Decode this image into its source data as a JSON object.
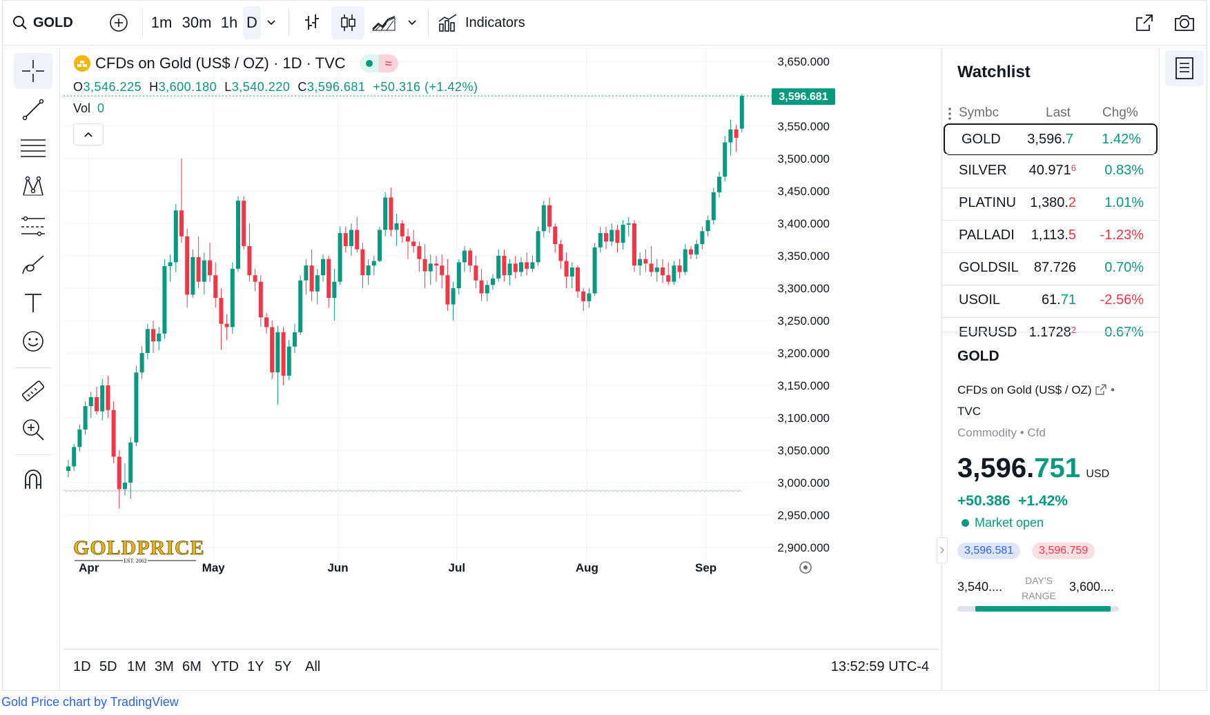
{
  "topbar": {
    "symbol": "GOLD",
    "intervals": [
      "1m",
      "30m",
      "1h",
      "D"
    ],
    "indicators_label": "Indicators"
  },
  "legend": {
    "title": "CFDs on Gold (US$ / OZ) · 1D · TVC",
    "open_k": "O",
    "open": "3,546.225",
    "high_k": "H",
    "high": "3,600.180",
    "low_k": "L",
    "low": "3,540.220",
    "close_k": "C",
    "close": "3,596.681",
    "change": "+50.316 (+1.42%)",
    "vol_label": "Vol",
    "vol_value": "0"
  },
  "price_scale": {
    "ticks": [
      "3,650.000",
      "3,600.000",
      "3,550.000",
      "3,500.000",
      "3,450.000",
      "3,400.000",
      "3,350.000",
      "3,300.000",
      "3,250.000",
      "3,200.000",
      "3,150.000",
      "3,100.000",
      "3,050.000",
      "3,000.000",
      "2,950.000",
      "2,900.000"
    ],
    "last_price": "3,596.681"
  },
  "time_scale": {
    "ticks": [
      "Apr",
      "May",
      "Jun",
      "Jul",
      "Aug",
      "Sep"
    ]
  },
  "watermark": {
    "logo": "GOLDPRICE",
    "est": "EST. 2002"
  },
  "range_buttons": [
    "1D",
    "5D",
    "1M",
    "3M",
    "6M",
    "YTD",
    "1Y",
    "5Y",
    "All"
  ],
  "clock": "13:52:59 UTC-4",
  "watchlist": {
    "title": "Watchlist",
    "col_symbol": "Symbc",
    "col_last": "Last",
    "col_chg": "Chg%",
    "rows": [
      {
        "symbol": "GOLD",
        "last": "3,596.",
        "last_tail": "7",
        "chg": "1.42%",
        "dir": "up"
      },
      {
        "symbol": "SILVER",
        "last": "40.971",
        "last_tail": "6",
        "chg": "0.83%",
        "dir": "down"
      },
      {
        "symbol": "PLATINU",
        "last": "1,380.",
        "last_tail": "2",
        "chg": "1.01%",
        "dir": "down"
      },
      {
        "symbol": "PALLADI",
        "last": "1,113.",
        "last_tail": "5",
        "chg": "-1.23%",
        "dir": "down"
      },
      {
        "symbol": "GOLDSIL",
        "last": "87.726",
        "last_tail": "",
        "chg": "0.70%",
        "dir": "up"
      },
      {
        "symbol": "USOIL",
        "last": "61.",
        "last_tail": "71",
        "chg": "-2.56%",
        "dir": "up"
      },
      {
        "symbol": "EURUSD",
        "last": "1.1728",
        "last_tail": "2",
        "chg": "0.67%",
        "dir": "down"
      }
    ]
  },
  "details": {
    "symbol": "GOLD",
    "name": "CFDs on Gold (US$ / OZ)",
    "exchange": "TVC",
    "category": "Commodity",
    "type": "Cfd",
    "price_main": "3,596.",
    "price_tail": "751",
    "currency": "USD",
    "change": "+50.386",
    "change_pct": "+1.42%",
    "market_status": "Market open",
    "bid": "3,596.581",
    "ask": "3,596.759",
    "range_low": "3,540....",
    "range_label_1": "DAY'S",
    "range_label_2": "RANGE",
    "range_high": "3,600....",
    "range_fill": 0.94
  },
  "footer": "Gold Price chart by TradingView",
  "colors": {
    "up": "#089981",
    "down": "#f23645",
    "accent": "#2962ff",
    "text": "#131722",
    "muted": "#6a6d78",
    "gold": "#f7b500"
  },
  "chart_data": {
    "type": "candlestick",
    "title": "CFDs on Gold (US$ / OZ) · 1D · TVC",
    "ylim": [
      2880,
      3660
    ],
    "y_ticks": [
      2900,
      2950,
      3000,
      3050,
      3100,
      3150,
      3200,
      3250,
      3300,
      3350,
      3400,
      3450,
      3500,
      3550,
      3600,
      3650
    ],
    "x_ticks": [
      {
        "label": "Apr",
        "index": 4
      },
      {
        "label": "May",
        "index": 26
      },
      {
        "label": "Jun",
        "index": 48
      },
      {
        "label": "Jul",
        "index": 69
      },
      {
        "label": "Aug",
        "index": 92
      },
      {
        "label": "Sep",
        "index": 113
      }
    ],
    "last_price": 3596.681,
    "candles": [
      {
        "o": 3018,
        "h": 3035,
        "l": 3008,
        "c": 3025
      },
      {
        "o": 3025,
        "h": 3060,
        "l": 3018,
        "c": 3055
      },
      {
        "o": 3055,
        "h": 3090,
        "l": 3048,
        "c": 3082
      },
      {
        "o": 3082,
        "h": 3125,
        "l": 3074,
        "c": 3118
      },
      {
        "o": 3118,
        "h": 3140,
        "l": 3100,
        "c": 3132
      },
      {
        "o": 3132,
        "h": 3148,
        "l": 3105,
        "c": 3110
      },
      {
        "o": 3110,
        "h": 3160,
        "l": 3096,
        "c": 3150
      },
      {
        "o": 3150,
        "h": 3165,
        "l": 3100,
        "c": 3112
      },
      {
        "o": 3112,
        "h": 3125,
        "l": 3030,
        "c": 3040
      },
      {
        "o": 3040,
        "h": 3050,
        "l": 2960,
        "c": 2990
      },
      {
        "o": 2990,
        "h": 3030,
        "l": 2980,
        "c": 3000
      },
      {
        "o": 3000,
        "h": 3070,
        "l": 2975,
        "c": 3062
      },
      {
        "o": 3062,
        "h": 3180,
        "l": 3056,
        "c": 3170
      },
      {
        "o": 3170,
        "h": 3210,
        "l": 3160,
        "c": 3200
      },
      {
        "o": 3200,
        "h": 3245,
        "l": 3190,
        "c": 3237
      },
      {
        "o": 3237,
        "h": 3250,
        "l": 3200,
        "c": 3218
      },
      {
        "o": 3218,
        "h": 3240,
        "l": 3204,
        "c": 3230
      },
      {
        "o": 3230,
        "h": 3345,
        "l": 3222,
        "c": 3334
      },
      {
        "o": 3334,
        "h": 3352,
        "l": 3310,
        "c": 3340
      },
      {
        "o": 3340,
        "h": 3430,
        "l": 3325,
        "c": 3420
      },
      {
        "o": 3420,
        "h": 3500,
        "l": 3370,
        "c": 3380
      },
      {
        "o": 3380,
        "h": 3392,
        "l": 3270,
        "c": 3290
      },
      {
        "o": 3290,
        "h": 3360,
        "l": 3285,
        "c": 3348
      },
      {
        "o": 3348,
        "h": 3380,
        "l": 3300,
        "c": 3310
      },
      {
        "o": 3310,
        "h": 3355,
        "l": 3290,
        "c": 3343
      },
      {
        "o": 3343,
        "h": 3370,
        "l": 3310,
        "c": 3320
      },
      {
        "o": 3320,
        "h": 3340,
        "l": 3270,
        "c": 3285
      },
      {
        "o": 3285,
        "h": 3300,
        "l": 3205,
        "c": 3245
      },
      {
        "o": 3245,
        "h": 3260,
        "l": 3220,
        "c": 3240
      },
      {
        "o": 3240,
        "h": 3340,
        "l": 3230,
        "c": 3330
      },
      {
        "o": 3330,
        "h": 3442,
        "l": 3325,
        "c": 3435
      },
      {
        "o": 3435,
        "h": 3442,
        "l": 3360,
        "c": 3365
      },
      {
        "o": 3365,
        "h": 3400,
        "l": 3310,
        "c": 3320
      },
      {
        "o": 3320,
        "h": 3330,
        "l": 3295,
        "c": 3310
      },
      {
        "o": 3310,
        "h": 3320,
        "l": 3240,
        "c": 3255
      },
      {
        "o": 3255,
        "h": 3262,
        "l": 3230,
        "c": 3240
      },
      {
        "o": 3240,
        "h": 3250,
        "l": 3160,
        "c": 3170
      },
      {
        "o": 3170,
        "h": 3242,
        "l": 3120,
        "c": 3232
      },
      {
        "o": 3232,
        "h": 3240,
        "l": 3150,
        "c": 3165
      },
      {
        "o": 3165,
        "h": 3220,
        "l": 3158,
        "c": 3210
      },
      {
        "o": 3210,
        "h": 3245,
        "l": 3200,
        "c": 3232
      },
      {
        "o": 3232,
        "h": 3320,
        "l": 3228,
        "c": 3312
      },
      {
        "o": 3312,
        "h": 3345,
        "l": 3290,
        "c": 3335
      },
      {
        "o": 3335,
        "h": 3360,
        "l": 3280,
        "c": 3295
      },
      {
        "o": 3295,
        "h": 3330,
        "l": 3275,
        "c": 3320
      },
      {
        "o": 3320,
        "h": 3352,
        "l": 3310,
        "c": 3345
      },
      {
        "o": 3345,
        "h": 3350,
        "l": 3270,
        "c": 3285
      },
      {
        "o": 3285,
        "h": 3330,
        "l": 3250,
        "c": 3310
      },
      {
        "o": 3310,
        "h": 3395,
        "l": 3305,
        "c": 3385
      },
      {
        "o": 3385,
        "h": 3395,
        "l": 3355,
        "c": 3365
      },
      {
        "o": 3365,
        "h": 3400,
        "l": 3350,
        "c": 3390
      },
      {
        "o": 3390,
        "h": 3410,
        "l": 3355,
        "c": 3360
      },
      {
        "o": 3360,
        "h": 3370,
        "l": 3300,
        "c": 3320
      },
      {
        "o": 3320,
        "h": 3345,
        "l": 3305,
        "c": 3335
      },
      {
        "o": 3335,
        "h": 3350,
        "l": 3320,
        "c": 3342
      },
      {
        "o": 3342,
        "h": 3395,
        "l": 3340,
        "c": 3390
      },
      {
        "o": 3390,
        "h": 3448,
        "l": 3380,
        "c": 3440
      },
      {
        "o": 3440,
        "h": 3455,
        "l": 3380,
        "c": 3390
      },
      {
        "o": 3390,
        "h": 3415,
        "l": 3365,
        "c": 3400
      },
      {
        "o": 3400,
        "h": 3405,
        "l": 3370,
        "c": 3380
      },
      {
        "o": 3380,
        "h": 3392,
        "l": 3345,
        "c": 3372
      },
      {
        "o": 3372,
        "h": 3390,
        "l": 3355,
        "c": 3365
      },
      {
        "o": 3365,
        "h": 3372,
        "l": 3325,
        "c": 3345
      },
      {
        "o": 3345,
        "h": 3368,
        "l": 3300,
        "c": 3326
      },
      {
        "o": 3326,
        "h": 3352,
        "l": 3305,
        "c": 3338
      },
      {
        "o": 3338,
        "h": 3350,
        "l": 3310,
        "c": 3335
      },
      {
        "o": 3335,
        "h": 3352,
        "l": 3300,
        "c": 3320
      },
      {
        "o": 3320,
        "h": 3345,
        "l": 3265,
        "c": 3275
      },
      {
        "o": 3275,
        "h": 3310,
        "l": 3250,
        "c": 3300
      },
      {
        "o": 3300,
        "h": 3345,
        "l": 3290,
        "c": 3340
      },
      {
        "o": 3340,
        "h": 3365,
        "l": 3325,
        "c": 3358
      },
      {
        "o": 3358,
        "h": 3362,
        "l": 3325,
        "c": 3335
      },
      {
        "o": 3335,
        "h": 3350,
        "l": 3300,
        "c": 3312
      },
      {
        "o": 3312,
        "h": 3330,
        "l": 3280,
        "c": 3292
      },
      {
        "o": 3292,
        "h": 3312,
        "l": 3280,
        "c": 3305
      },
      {
        "o": 3305,
        "h": 3322,
        "l": 3298,
        "c": 3315
      },
      {
        "o": 3315,
        "h": 3360,
        "l": 3310,
        "c": 3350
      },
      {
        "o": 3350,
        "h": 3360,
        "l": 3310,
        "c": 3320
      },
      {
        "o": 3320,
        "h": 3345,
        "l": 3305,
        "c": 3338
      },
      {
        "o": 3338,
        "h": 3350,
        "l": 3315,
        "c": 3325
      },
      {
        "o": 3325,
        "h": 3348,
        "l": 3318,
        "c": 3340
      },
      {
        "o": 3340,
        "h": 3355,
        "l": 3320,
        "c": 3330
      },
      {
        "o": 3330,
        "h": 3350,
        "l": 3325,
        "c": 3340
      },
      {
        "o": 3340,
        "h": 3395,
        "l": 3335,
        "c": 3388
      },
      {
        "o": 3388,
        "h": 3435,
        "l": 3378,
        "c": 3428
      },
      {
        "o": 3428,
        "h": 3440,
        "l": 3385,
        "c": 3395
      },
      {
        "o": 3395,
        "h": 3400,
        "l": 3355,
        "c": 3368
      },
      {
        "o": 3368,
        "h": 3375,
        "l": 3330,
        "c": 3342
      },
      {
        "o": 3342,
        "h": 3355,
        "l": 3300,
        "c": 3318
      },
      {
        "o": 3318,
        "h": 3340,
        "l": 3300,
        "c": 3332
      },
      {
        "o": 3332,
        "h": 3335,
        "l": 3285,
        "c": 3295
      },
      {
        "o": 3295,
        "h": 3300,
        "l": 3265,
        "c": 3280
      },
      {
        "o": 3280,
        "h": 3300,
        "l": 3270,
        "c": 3292
      },
      {
        "o": 3292,
        "h": 3370,
        "l": 3288,
        "c": 3363
      },
      {
        "o": 3363,
        "h": 3395,
        "l": 3355,
        "c": 3385
      },
      {
        "o": 3385,
        "h": 3395,
        "l": 3360,
        "c": 3372
      },
      {
        "o": 3372,
        "h": 3400,
        "l": 3365,
        "c": 3390
      },
      {
        "o": 3390,
        "h": 3398,
        "l": 3355,
        "c": 3370
      },
      {
        "o": 3370,
        "h": 3405,
        "l": 3360,
        "c": 3398
      },
      {
        "o": 3398,
        "h": 3410,
        "l": 3380,
        "c": 3400
      },
      {
        "o": 3400,
        "h": 3405,
        "l": 3325,
        "c": 3335
      },
      {
        "o": 3335,
        "h": 3355,
        "l": 3320,
        "c": 3345
      },
      {
        "o": 3345,
        "h": 3360,
        "l": 3325,
        "c": 3338
      },
      {
        "o": 3338,
        "h": 3365,
        "l": 3318,
        "c": 3325
      },
      {
        "o": 3325,
        "h": 3345,
        "l": 3310,
        "c": 3332
      },
      {
        "o": 3332,
        "h": 3345,
        "l": 3308,
        "c": 3320
      },
      {
        "o": 3320,
        "h": 3340,
        "l": 3305,
        "c": 3310
      },
      {
        "o": 3310,
        "h": 3342,
        "l": 3305,
        "c": 3335
      },
      {
        "o": 3335,
        "h": 3345,
        "l": 3315,
        "c": 3325
      },
      {
        "o": 3325,
        "h": 3368,
        "l": 3320,
        "c": 3360
      },
      {
        "o": 3360,
        "h": 3365,
        "l": 3345,
        "c": 3352
      },
      {
        "o": 3352,
        "h": 3375,
        "l": 3345,
        "c": 3368
      },
      {
        "o": 3368,
        "h": 3395,
        "l": 3360,
        "c": 3388
      },
      {
        "o": 3388,
        "h": 3412,
        "l": 3380,
        "c": 3405
      },
      {
        "o": 3405,
        "h": 3455,
        "l": 3398,
        "c": 3448
      },
      {
        "o": 3448,
        "h": 3480,
        "l": 3440,
        "c": 3472
      },
      {
        "o": 3472,
        "h": 3535,
        "l": 3465,
        "c": 3525
      },
      {
        "o": 3525,
        "h": 3560,
        "l": 3505,
        "c": 3545
      },
      {
        "o": 3545,
        "h": 3552,
        "l": 3510,
        "c": 3532
      },
      {
        "o": 3546.225,
        "h": 3600.18,
        "l": 3540.22,
        "c": 3596.681
      }
    ]
  }
}
